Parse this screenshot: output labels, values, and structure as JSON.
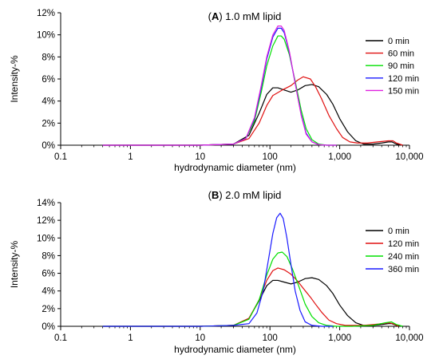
{
  "chart_data": [
    {
      "type": "line",
      "panel_letter": "A",
      "title": "1.0 mM lipid",
      "xlabel": "hydrodynamic diameter (nm)",
      "ylabel": "Intensity-%",
      "xscale": "log",
      "xlim": [
        0.1,
        10000
      ],
      "ylim": [
        0,
        12
      ],
      "x_ticks": [
        0.1,
        1,
        10,
        100,
        1000,
        10000
      ],
      "x_tick_labels": [
        "0.1",
        "1",
        "10",
        "100",
        "1,000",
        "10,000"
      ],
      "y_ticks": [
        0,
        2,
        4,
        6,
        8,
        10,
        12
      ],
      "y_tick_labels": [
        "0%",
        "2%",
        "4%",
        "6%",
        "8%",
        "10%",
        "12%"
      ],
      "grid": false,
      "legend_position": "right",
      "series": [
        {
          "name": "0 min",
          "color": "#000000",
          "x": [
            0.4,
            10,
            30,
            50,
            70,
            90,
            110,
            130,
            160,
            200,
            250,
            320,
            400,
            500,
            650,
            800,
            1000,
            1300,
            1700,
            2200,
            3000,
            4000,
            5000,
            5600,
            6500,
            8000
          ],
          "y": [
            0,
            0,
            0.1,
            0.9,
            2.9,
            4.6,
            5.2,
            5.2,
            5.0,
            4.8,
            5.0,
            5.4,
            5.5,
            5.3,
            4.6,
            3.7,
            2.4,
            1.2,
            0.4,
            0.1,
            0.1,
            0.2,
            0.3,
            0.3,
            0.1,
            0
          ]
        },
        {
          "name": "60 min",
          "color": "#e01010",
          "x": [
            0.4,
            10,
            30,
            50,
            70,
            90,
            110,
            150,
            200,
            250,
            300,
            380,
            450,
            550,
            700,
            900,
            1100,
            1400,
            1800,
            2500,
            3500,
            5000,
            5800,
            6500,
            8000
          ],
          "y": [
            0,
            0,
            0.1,
            0.6,
            2.0,
            3.6,
            4.5,
            5.0,
            5.4,
            5.9,
            6.2,
            6.0,
            5.3,
            4.2,
            2.7,
            1.5,
            0.7,
            0.3,
            0.2,
            0.2,
            0.3,
            0.4,
            0.4,
            0.2,
            0
          ]
        },
        {
          "name": "90 min",
          "color": "#00e000",
          "x": [
            0.4,
            10,
            30,
            45,
            60,
            75,
            90,
            110,
            130,
            145,
            160,
            190,
            230,
            280,
            330,
            400,
            500,
            650,
            900
          ],
          "y": [
            0,
            0,
            0.1,
            0.6,
            2.2,
            4.8,
            7.2,
            9.0,
            9.9,
            9.9,
            9.6,
            8.2,
            5.8,
            3.2,
            1.5,
            0.5,
            0.1,
            0,
            0
          ]
        },
        {
          "name": "120 min",
          "color": "#1a1aff",
          "x": [
            0.4,
            10,
            30,
            45,
            60,
            75,
            90,
            110,
            130,
            145,
            160,
            190,
            230,
            280,
            330,
            400,
            500,
            650,
            900
          ],
          "y": [
            0,
            0,
            0.1,
            0.6,
            2.4,
            5.2,
            7.8,
            9.8,
            10.6,
            10.6,
            10.2,
            8.4,
            5.6,
            2.8,
            1.1,
            0.3,
            0.05,
            0,
            0
          ]
        },
        {
          "name": "150 min",
          "color": "#e020e0",
          "x": [
            0.4,
            10,
            30,
            45,
            60,
            75,
            90,
            110,
            130,
            145,
            160,
            190,
            230,
            280,
            330,
            400,
            500,
            650,
            900
          ],
          "y": [
            0,
            0,
            0.1,
            0.6,
            2.5,
            5.4,
            8.0,
            10.0,
            10.8,
            10.8,
            10.4,
            8.5,
            5.6,
            2.7,
            1.0,
            0.3,
            0.05,
            0,
            0
          ]
        }
      ]
    },
    {
      "type": "line",
      "panel_letter": "B",
      "title": "2.0 mM lipid",
      "xlabel": "hydrodynamic diameter (nm)",
      "ylabel": "Intensity-%",
      "xscale": "log",
      "xlim": [
        0.1,
        10000
      ],
      "ylim": [
        0,
        14
      ],
      "x_ticks": [
        0.1,
        1,
        10,
        100,
        1000,
        10000
      ],
      "x_tick_labels": [
        "0.1",
        "1",
        "10",
        "100",
        "1,000",
        "10,000"
      ],
      "y_ticks": [
        0,
        2,
        4,
        6,
        8,
        10,
        12,
        14
      ],
      "y_tick_labels": [
        "0%",
        "2%",
        "4%",
        "6%",
        "8%",
        "10%",
        "12%",
        "14%"
      ],
      "grid": false,
      "legend_position": "right",
      "series": [
        {
          "name": "0 min",
          "color": "#000000",
          "x": [
            0.4,
            10,
            30,
            50,
            70,
            90,
            110,
            130,
            160,
            200,
            250,
            320,
            400,
            500,
            650,
            800,
            1000,
            1300,
            1700,
            2200,
            3000,
            4000,
            5000,
            5600,
            6500,
            8000
          ],
          "y": [
            0,
            0,
            0.1,
            0.9,
            2.9,
            4.6,
            5.2,
            5.2,
            5.0,
            4.8,
            5.0,
            5.4,
            5.5,
            5.3,
            4.6,
            3.7,
            2.4,
            1.2,
            0.4,
            0.1,
            0.1,
            0.2,
            0.3,
            0.3,
            0.1,
            0
          ]
        },
        {
          "name": "120 min",
          "color": "#e01010",
          "x": [
            0.4,
            10,
            30,
            50,
            70,
            90,
            110,
            130,
            160,
            200,
            250,
            300,
            380,
            450,
            550,
            700,
            900,
            1200,
            1600,
            2200,
            3000,
            4000,
            5000,
            5800,
            7000
          ],
          "y": [
            0,
            0,
            0.1,
            0.9,
            3.0,
            5.2,
            6.3,
            6.6,
            6.4,
            5.9,
            5.1,
            4.3,
            3.3,
            2.5,
            1.6,
            0.7,
            0.3,
            0.1,
            0.1,
            0.1,
            0.2,
            0.3,
            0.4,
            0.3,
            0
          ]
        },
        {
          "name": "240 min",
          "color": "#00e000",
          "x": [
            0.4,
            10,
            30,
            50,
            70,
            90,
            110,
            130,
            150,
            175,
            210,
            260,
            320,
            400,
            500,
            650,
            900,
            1500,
            3000,
            4500,
            5500,
            6500,
            8000
          ],
          "y": [
            0,
            0,
            0.1,
            0.8,
            3.0,
            5.8,
            7.6,
            8.3,
            8.4,
            7.9,
            6.5,
            4.5,
            2.5,
            1.1,
            0.4,
            0.1,
            0,
            0,
            0.1,
            0.4,
            0.5,
            0.2,
            0
          ]
        },
        {
          "name": "360 min",
          "color": "#1a1aff",
          "x": [
            0.4,
            10,
            30,
            50,
            65,
            80,
            95,
            110,
            125,
            140,
            155,
            175,
            200,
            230,
            270,
            320,
            400,
            550,
            800
          ],
          "y": [
            0,
            0,
            0.1,
            0.3,
            1.5,
            4.0,
            7.5,
            10.5,
            12.3,
            12.8,
            12.2,
            10.0,
            7.0,
            4.0,
            1.8,
            0.5,
            0.1,
            0,
            0
          ]
        }
      ]
    }
  ]
}
